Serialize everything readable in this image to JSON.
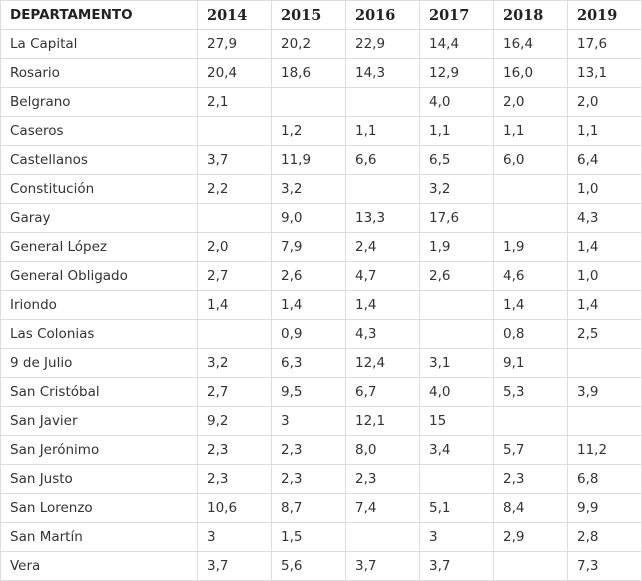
{
  "table": {
    "headers": [
      "DEPARTAMENTO",
      "2014",
      "2015",
      "2016",
      "2017",
      "2018",
      "2019"
    ],
    "rows": [
      [
        "La Capital",
        "27,9",
        "20,2",
        "22,9",
        "14,4",
        "16,4",
        "17,6"
      ],
      [
        "Rosario",
        "20,4",
        "18,6",
        "14,3",
        "12,9",
        "16,0",
        "13,1"
      ],
      [
        "Belgrano",
        "2,1",
        "",
        "",
        "4,0",
        "2,0",
        "2,0"
      ],
      [
        "Caseros",
        "",
        "1,2",
        "1,1",
        "1,1",
        "1,1",
        "1,1"
      ],
      [
        "Castellanos",
        "3,7",
        "11,9",
        "6,6",
        "6,5",
        "6,0",
        "6,4"
      ],
      [
        "Constitución",
        "2,2",
        "3,2",
        "",
        "3,2",
        "",
        "1,0"
      ],
      [
        "Garay",
        "",
        "9,0",
        "13,3",
        "17,6",
        "",
        "4,3"
      ],
      [
        "General López",
        "2,0",
        "7,9",
        "2,4",
        "1,9",
        "1,9",
        "1,4"
      ],
      [
        "General Obligado",
        "2,7",
        "2,6",
        "4,7",
        "2,6",
        "4,6",
        "1,0"
      ],
      [
        "Iriondo",
        "1,4",
        "1,4",
        "1,4",
        "",
        "1,4",
        "1,4"
      ],
      [
        "Las Colonias",
        "",
        "0,9",
        "4,3",
        "",
        "0,8",
        "2,5"
      ],
      [
        "9 de Julio",
        "3,2",
        "6,3",
        "12,4",
        "3,1",
        "9,1",
        ""
      ],
      [
        "San Cristóbal",
        "2,7",
        "9,5",
        "6,7",
        "4,0",
        "5,3",
        "3,9"
      ],
      [
        "San Javier",
        "9,2",
        "3",
        "12,1",
        "15",
        "",
        ""
      ],
      [
        "San Jerónimo",
        "2,3",
        "2,3",
        "8,0",
        "3,4",
        "5,7",
        "11,2"
      ],
      [
        "San Justo",
        "2,3",
        "2,3",
        "2,3",
        "",
        "2,3",
        "6,8"
      ],
      [
        "San Lorenzo",
        "10,6",
        "8,7",
        "7,4",
        "5,1",
        "8,4",
        "9,9"
      ],
      [
        "San Martín",
        "3",
        "1,5",
        "",
        "3",
        "2,9",
        "2,8"
      ],
      [
        "Vera",
        "3,7",
        "5,6",
        "3,7",
        "3,7",
        "",
        "7,3"
      ]
    ]
  }
}
